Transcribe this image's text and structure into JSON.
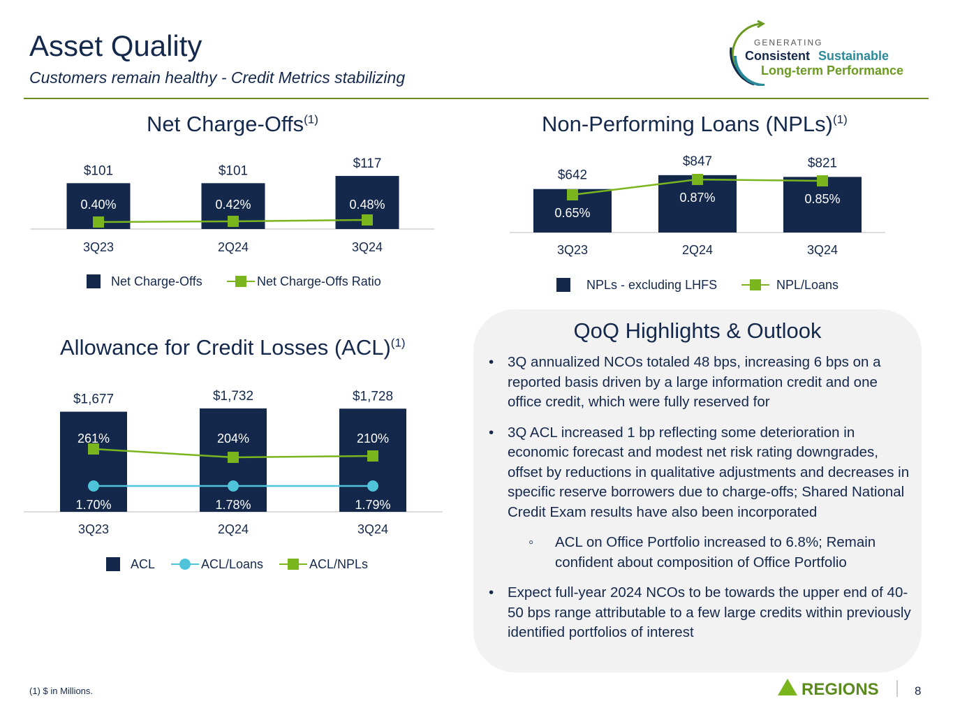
{
  "header": {
    "title": "Asset Quality",
    "subtitle": "Customers remain healthy - Credit Metrics stabilizing"
  },
  "logo": {
    "small": "GENERATING",
    "word1": "Consistent",
    "word2": "Sustainable",
    "line2": "Long-term Performance"
  },
  "chart_data": [
    {
      "type": "bar",
      "title": "Net Charge-Offs",
      "footnote_ref": "(1)",
      "categories": [
        "3Q23",
        "2Q24",
        "3Q24"
      ],
      "series": [
        {
          "name": "Net Charge-Offs",
          "kind": "bar",
          "values": [
            101,
            101,
            117
          ],
          "labels": [
            "$101",
            "$101",
            "$117"
          ]
        },
        {
          "name": "Net Charge-Offs Ratio",
          "kind": "line",
          "values": [
            0.4,
            0.42,
            0.48
          ],
          "labels": [
            "0.40%",
            "0.42%",
            "0.48%"
          ]
        }
      ],
      "legend": "bottom"
    },
    {
      "type": "bar",
      "title": "Non-Performing Loans (NPLs)",
      "footnote_ref": "(1)",
      "categories": [
        "3Q23",
        "2Q24",
        "3Q24"
      ],
      "series": [
        {
          "name": "NPLs - excluding LHFS",
          "kind": "bar",
          "values": [
            642,
            847,
            821
          ],
          "labels": [
            "$642",
            "$847",
            "$821"
          ]
        },
        {
          "name": "NPL/Loans",
          "kind": "line",
          "values": [
            0.65,
            0.87,
            0.85
          ],
          "labels": [
            "0.65%",
            "0.87%",
            "0.85%"
          ]
        }
      ],
      "legend": "bottom"
    },
    {
      "type": "bar",
      "title": "Allowance for Credit Losses (ACL)",
      "footnote_ref": "(1)",
      "categories": [
        "3Q23",
        "2Q24",
        "3Q24"
      ],
      "series": [
        {
          "name": "ACL",
          "kind": "bar",
          "values": [
            1677,
            1732,
            1728
          ],
          "labels": [
            "$1,677",
            "$1,732",
            "$1,728"
          ]
        },
        {
          "name": "ACL/Loans",
          "kind": "line",
          "values": [
            1.7,
            1.78,
            1.79
          ],
          "labels": [
            "1.70%",
            "1.78%",
            "1.79%"
          ]
        },
        {
          "name": "ACL/NPLs",
          "kind": "line",
          "values": [
            261,
            204,
            210
          ],
          "labels": [
            "261%",
            "204%",
            "210%"
          ]
        }
      ],
      "legend": "bottom"
    }
  ],
  "highlights": {
    "title": "QoQ Highlights & Outlook",
    "items": [
      "3Q annualized NCOs totaled 48 bps, increasing 6 bps on a reported basis driven by a large information credit and one office credit, which were fully reserved for",
      "3Q ACL increased 1 bp reflecting some deterioration in economic forecast and modest net risk rating downgrades, offset by reductions in qualitative adjustments and decreases in specific reserve borrowers due to charge-offs; Shared National Credit Exam results have also been incorporated",
      "ACL on Office Portfolio increased to 6.8%; Remain confident about composition of Office Portfolio",
      "Expect full-year 2024 NCOs to be towards the upper end of 40-50 bps range attributable to a few large credits within previously identified portfolios of interest"
    ]
  },
  "footer": {
    "footnote": "(1) $ in Millions.",
    "brand": "REGIONS",
    "page": "8"
  },
  "colors": {
    "navy": "#14284b",
    "green": "#7ab51d",
    "teal": "#4fc3d9"
  }
}
